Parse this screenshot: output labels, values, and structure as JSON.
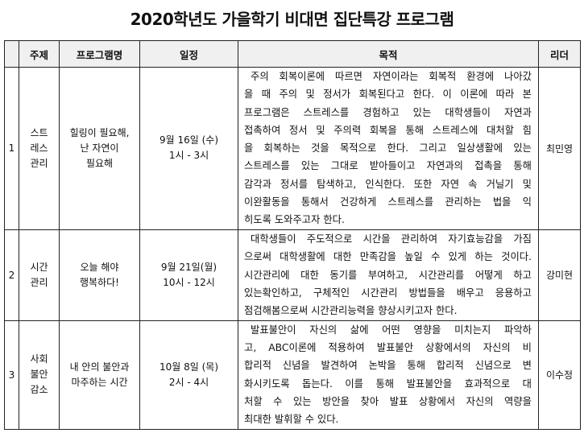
{
  "title": "2020학년도 가을학기 비대면 집단특강 프로그램",
  "headers": {
    "num": "",
    "topic": "주제",
    "program": "프로그램명",
    "schedule": "일정",
    "purpose": "목적",
    "leader": "리더"
  },
  "rows": [
    {
      "num": "1",
      "topic": [
        "스트",
        "레스",
        "관리"
      ],
      "program": [
        "힐링이 필요해,",
        "난 자연이",
        "필요해"
      ],
      "schedule": [
        "9월 16일 (수)",
        "1시 - 3시"
      ],
      "purpose": [
        "주의 회복이론에 따르면 자연이라는 회복적 환경에 나아갔",
        "을 때 주의 및 정서가 회복된다고 한다. 이 이론에 따라 본",
        "프로그램은 스트레스를 경험하고 있는 대학생들이 자연과",
        "접촉하여 정서 및 주의력 회복을 통해 스트레스에 대처할 힘",
        "을 회복하는 것을 목적으로 한다. 그리고 일상생활에 있는",
        "스트레스를 있는 그대로 받아들이고 자연과의 접촉을 통해",
        "감각과 정서를 탐색하고, 인식한다. 또한 자연 속 거닐기 및",
        "이완활동을 통해서 건강하게 스트레스를 관리하는 법을 익",
        "히도록 도와주고자 한다."
      ],
      "leader": "최민영"
    },
    {
      "num": "2",
      "topic": [
        "시간",
        "관리"
      ],
      "program": [
        "오늘 해야",
        "행복하다!"
      ],
      "schedule": [
        "9월 21일(월)",
        "10시 - 12시"
      ],
      "purpose": [
        "대학생들이 주도적으로 시간을 관리하여 자기효능감을 가짐",
        "으로써 대학생활에 대한 만족감을 높일 수 있게 하는 것이다.",
        "시간관리에 대한 동기를 부여하고, 시간관리를 어떻게 하고",
        "있는확인하고, 구체적인 시간관리 방법들을 배우고 응용하고",
        "점검해봄으로써 시간관리능력을 향상시키고자 한다."
      ],
      "leader": "강미현"
    },
    {
      "num": "3",
      "topic": [
        "사회",
        "불안",
        "감소"
      ],
      "program": [
        "내 안의 불안과",
        "마주하는 시간"
      ],
      "schedule": [
        "10월 8일 (목)",
        "2시 - 4시"
      ],
      "purpose": [
        "발표불안이 자신의 삶에 어떤 영향을 미치는지 파악하",
        "고, ABC이론에 적용하여 발표불안 상황에서의 자신의 비",
        "합리적 신념을 발견하여 논박을 통해 합리적 신념으로 변",
        "화시키도록 돕는다. 이를 통해 발표불안을 효과적으로 대",
        "처할 수 있는 방안을 찾아 발표 상황에서 자신의 역량을",
        "최대한 발휘할 수 있다."
      ],
      "leader": "이수정"
    }
  ]
}
